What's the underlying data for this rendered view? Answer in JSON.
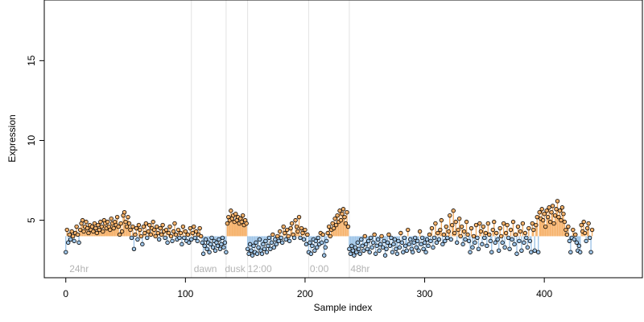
{
  "chart_data": {
    "type": "scatter",
    "xlabel": "Sample index",
    "ylabel": "Expression",
    "xlim": [
      -18,
      482
    ],
    "ylim": [
      1.4,
      18.8
    ],
    "x_ticks": [
      0,
      100,
      200,
      300,
      400
    ],
    "y_ticks": [
      5,
      10,
      15
    ],
    "grid": false,
    "colors": {
      "low": "#9fc5e8",
      "high": "#f6b26b",
      "point_stroke": "#000000",
      "phase_line": "#e3e3e3",
      "phase_label": "#b3b3b3"
    },
    "baseline": 4.0,
    "phase_boundaries": [
      105,
      134,
      152,
      203,
      237
    ],
    "phase_labels": [
      {
        "x": 3,
        "text": "24hr"
      },
      {
        "x": 107,
        "text": "dawn"
      },
      {
        "x": 133,
        "text": "dusk"
      },
      {
        "x": 152,
        "text": "12:00"
      },
      {
        "x": 204,
        "text": "0:00"
      },
      {
        "x": 238,
        "text": "48hr"
      }
    ],
    "series": [
      {
        "values": [
          3.0,
          4.4,
          3.6,
          4.1,
          3.8,
          4.3,
          4.0,
          3.7,
          4.2,
          4.6,
          4.1,
          3.6,
          4.4,
          4.8,
          5.0,
          4.3,
          4.6,
          4.9,
          4.5,
          4.2,
          4.7,
          4.4,
          4.6,
          4.3,
          4.8,
          4.5,
          4.2,
          4.7,
          4.4,
          4.9,
          4.6,
          4.3,
          5.0,
          4.8,
          4.5,
          4.9,
          4.6,
          4.4,
          5.1,
          4.8,
          4.5,
          4.9,
          4.7,
          5.2,
          4.6,
          4.1,
          4.8,
          4.3,
          5.3,
          5.5,
          4.9,
          4.6,
          5.2,
          4.8,
          4.4,
          3.9,
          4.6,
          3.2,
          4.1,
          4.5,
          3.8,
          4.7,
          4.4,
          4.0,
          3.5,
          4.6,
          4.2,
          4.8,
          3.9,
          4.3,
          4.7,
          4.1,
          4.5,
          4.9,
          4.4,
          4.0,
          4.6,
          4.2,
          3.8,
          4.5,
          4.1,
          4.7,
          4.3,
          3.9,
          4.4,
          3.6,
          4.2,
          4.6,
          4.0,
          3.7,
          4.3,
          4.8,
          4.1,
          3.8,
          4.4,
          3.9,
          4.2,
          3.5,
          4.6,
          3.9,
          4.3,
          3.7,
          4.1,
          3.6,
          4.5,
          3.8,
          4.2,
          4.6,
          3.9,
          4.3,
          3.7,
          4.1,
          4.5,
          4.0,
          3.6,
          2.9,
          3.4,
          3.8,
          3.2,
          3.6,
          3.0,
          3.5,
          3.9,
          3.3,
          3.7,
          3.1,
          3.6,
          3.4,
          3.8,
          3.2,
          3.5,
          3.9,
          3.3,
          3.6,
          3.0,
          4.8,
          5.2,
          5.0,
          5.6,
          5.1,
          5.3,
          4.9,
          5.4,
          5.0,
          5.2,
          4.8,
          5.1,
          4.9,
          5.3,
          4.7,
          5.0,
          4.8,
          3.2,
          2.9,
          3.5,
          3.1,
          2.8,
          3.4,
          3.0,
          3.6,
          2.9,
          3.3,
          3.8,
          3.1,
          2.9,
          3.5,
          3.2,
          3.7,
          3.0,
          3.4,
          3.9,
          3.2,
          3.6,
          4.1,
          3.3,
          3.8,
          3.5,
          4.0,
          3.7,
          4.3,
          3.9,
          3.6,
          4.6,
          4.2,
          3.8,
          4.4,
          4.0,
          3.7,
          4.5,
          4.8,
          4.1,
          3.9,
          5.0,
          4.6,
          4.3,
          5.2,
          3.9,
          4.5,
          4.2,
          3.8,
          4.4,
          3.5,
          4.1,
          3.0,
          3.6,
          2.9,
          3.4,
          3.8,
          3.1,
          3.7,
          3.3,
          3.9,
          3.5,
          4.2,
          3.6,
          4.1,
          2.8,
          3.3,
          3.7,
          4.2,
          4.6,
          4.0,
          4.4,
          4.8,
          4.5,
          5.1,
          4.7,
          5.3,
          4.9,
          5.6,
          5.0,
          5.4,
          5.7,
          5.2,
          4.8,
          5.5,
          4.6,
          3.2,
          2.9,
          3.4,
          3.1,
          2.8,
          3.3,
          3.0,
          3.6,
          3.2,
          2.9,
          3.8,
          3.4,
          3.1,
          4.0,
          3.5,
          3.2,
          3.7,
          3.0,
          3.9,
          3.3,
          3.6,
          4.1,
          2.9,
          3.4,
          3.8,
          3.1,
          3.5,
          4.0,
          3.3,
          3.7,
          2.8,
          3.2,
          3.6,
          4.1,
          3.4,
          3.9,
          3.0,
          3.5,
          3.8,
          3.2,
          2.9,
          3.7,
          3.3,
          4.2,
          3.6,
          3.0,
          3.9,
          3.4,
          3.1,
          4.4,
          3.5,
          3.8,
          3.2,
          3.0,
          3.6,
          3.9,
          3.3,
          3.7,
          3.1,
          4.3,
          3.5,
          3.9,
          3.2,
          3.6,
          3.0,
          3.8,
          3.4,
          4.1,
          3.7,
          4.5,
          3.3,
          3.9,
          4.8,
          3.6,
          4.2,
          3.8,
          4.4,
          5.0,
          3.5,
          4.1,
          3.7,
          4.6,
          3.9,
          4.3,
          5.3,
          3.8,
          4.7,
          5.6,
          4.2,
          4.9,
          3.6,
          4.4,
          5.1,
          4.0,
          4.6,
          3.5,
          4.3,
          3.8,
          4.9,
          4.1,
          3.7,
          3.0,
          4.5,
          3.3,
          4.0,
          3.6,
          4.7,
          3.9,
          3.2,
          4.8,
          4.3,
          3.5,
          4.6,
          3.9,
          4.2,
          3.4,
          4.8,
          4.1,
          3.7,
          3.0,
          4.4,
          4.9,
          3.6,
          4.2,
          3.8,
          3.1,
          4.5,
          4.0,
          3.6,
          4.8,
          3.3,
          4.2,
          4.7,
          3.9,
          3.2,
          4.4,
          3.8,
          4.9,
          3.5,
          4.1,
          2.9,
          4.6,
          3.7,
          4.3,
          3.1,
          4.8,
          3.6,
          4.2,
          3.9,
          3.3,
          4.5,
          3.7,
          3.0,
          4.8,
          4.4,
          3.1,
          4.7,
          5.2,
          3.0,
          5.5,
          5.1,
          5.7,
          5.0,
          5.4,
          4.6,
          5.6,
          5.2,
          5.8,
          4.9,
          5.5,
          5.9,
          4.8,
          5.3,
          5.7,
          6.2,
          5.2,
          5.6,
          5.0,
          5.8,
          5.4,
          4.9,
          4.4,
          4.1,
          4.6,
          3.7,
          3.0,
          3.9,
          4.4,
          3.8,
          4.1,
          3.6,
          3.1,
          3.4,
          3.0,
          4.7,
          4.3,
          4.9,
          4.2,
          3.7,
          4.5,
          4.8,
          3.9,
          3.0,
          4.4
        ]
      }
    ]
  }
}
